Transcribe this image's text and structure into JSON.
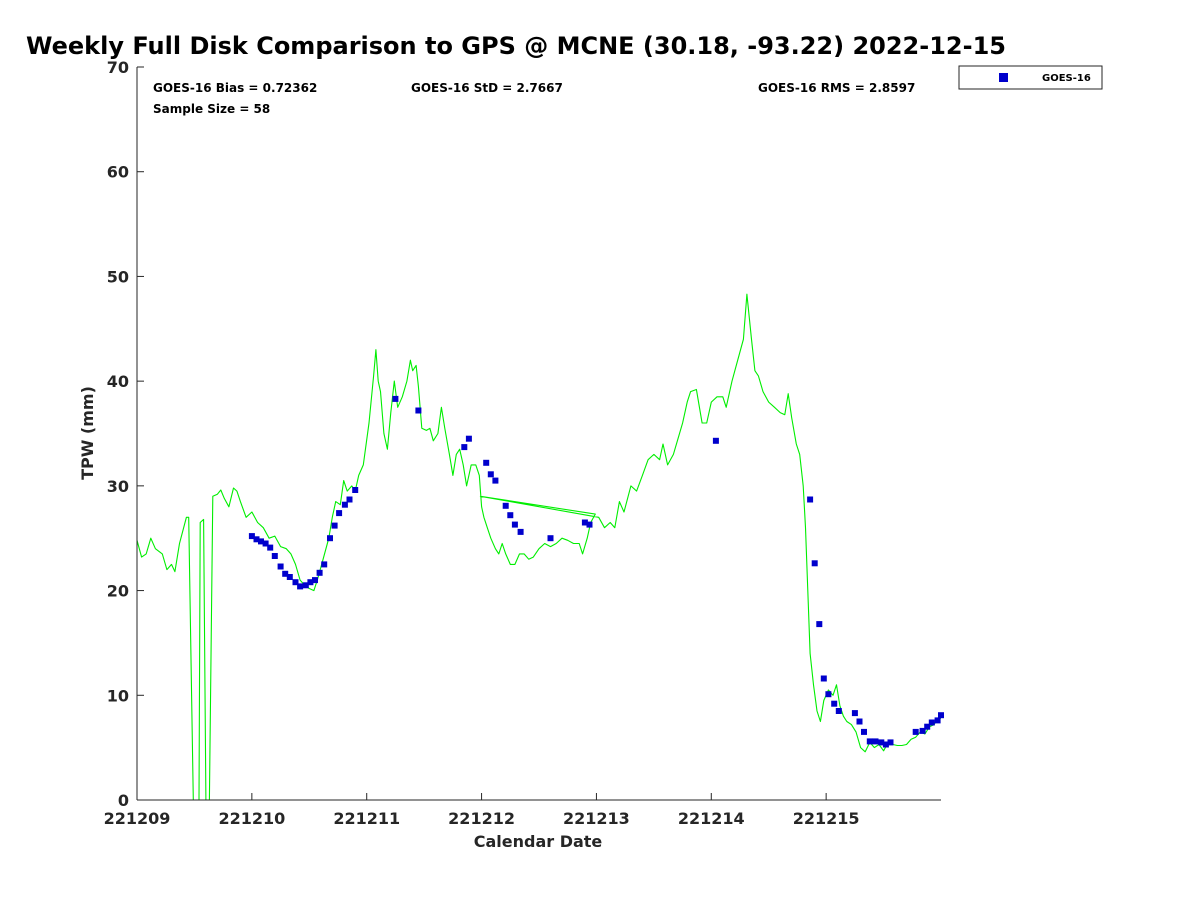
{
  "chart_data": {
    "type": "scatter",
    "title": "Weekly Full Disk Comparison to GPS @ MCNE (30.18, -93.22) 2022-12-15",
    "xlabel": "Calendar Date",
    "ylabel": "TPW (mm)",
    "xlim": [
      0,
      7
    ],
    "ylim": [
      0,
      70
    ],
    "x_ticks": [
      {
        "value": 0,
        "label": "221209"
      },
      {
        "value": 1,
        "label": "221210"
      },
      {
        "value": 2,
        "label": "221211"
      },
      {
        "value": 3,
        "label": "221212"
      },
      {
        "value": 4,
        "label": "221213"
      },
      {
        "value": 5,
        "label": "221214"
      },
      {
        "value": 6,
        "label": "221215"
      }
    ],
    "y_ticks": [
      0,
      10,
      20,
      30,
      40,
      50,
      60,
      70
    ],
    "stats": {
      "bias": "GOES-16 Bias = 0.72362",
      "std": "GOES-16 StD = 2.7667",
      "rms": "GOES-16 RMS = 2.8597",
      "sample": "Sample Size = 58"
    },
    "legend": {
      "position": "top-right",
      "entries": [
        {
          "name": "GOES-16",
          "color": "#0000cc"
        }
      ]
    },
    "grid": false,
    "gps_line_color": "#00ee00",
    "series": [
      {
        "name": "GPS",
        "type": "line",
        "color": "#00ee00",
        "points": [
          [
            0.0,
            24.8
          ],
          [
            0.04,
            23.2
          ],
          [
            0.08,
            23.5
          ],
          [
            0.12,
            25.0
          ],
          [
            0.16,
            24.0
          ],
          [
            0.22,
            23.5
          ],
          [
            0.26,
            22.0
          ],
          [
            0.3,
            22.5
          ],
          [
            0.33,
            21.8
          ],
          [
            0.37,
            24.5
          ],
          [
            0.43,
            27.0
          ],
          [
            0.45,
            27.0
          ],
          [
            0.49,
            0
          ],
          [
            0.54,
            0
          ],
          [
            0.55,
            26.5
          ],
          [
            0.58,
            26.8
          ],
          [
            0.6,
            0
          ],
          [
            0.63,
            0
          ],
          [
            0.66,
            29.0
          ],
          [
            0.7,
            29.2
          ],
          [
            0.73,
            29.6
          ],
          [
            0.76,
            28.8
          ],
          [
            0.8,
            28.0
          ],
          [
            0.84,
            29.8
          ],
          [
            0.87,
            29.5
          ],
          [
            0.9,
            28.5
          ],
          [
            0.95,
            27.0
          ],
          [
            1.0,
            27.5
          ],
          [
            1.05,
            26.5
          ],
          [
            1.1,
            26.0
          ],
          [
            1.15,
            25.0
          ],
          [
            1.2,
            25.2
          ],
          [
            1.25,
            24.2
          ],
          [
            1.3,
            24.0
          ],
          [
            1.34,
            23.5
          ],
          [
            1.38,
            22.5
          ],
          [
            1.42,
            21.0
          ],
          [
            1.46,
            20.5
          ],
          [
            1.5,
            20.2
          ],
          [
            1.54,
            20.0
          ],
          [
            1.57,
            21.0
          ],
          [
            1.62,
            23.0
          ],
          [
            1.67,
            25.0
          ],
          [
            1.7,
            27.0
          ],
          [
            1.73,
            28.5
          ],
          [
            1.77,
            28.2
          ],
          [
            1.8,
            30.5
          ],
          [
            1.83,
            29.5
          ],
          [
            1.87,
            30.0
          ],
          [
            1.9,
            29.5
          ],
          [
            1.93,
            31.0
          ],
          [
            1.97,
            32.0
          ],
          [
            2.02,
            36.0
          ],
          [
            2.06,
            40.5
          ],
          [
            2.08,
            43.0
          ],
          [
            2.1,
            40.0
          ],
          [
            2.12,
            39.0
          ],
          [
            2.15,
            35.0
          ],
          [
            2.18,
            33.5
          ],
          [
            2.21,
            37.0
          ],
          [
            2.24,
            40.0
          ],
          [
            2.27,
            37.5
          ],
          [
            2.31,
            38.5
          ],
          [
            2.35,
            40.0
          ],
          [
            2.38,
            42.0
          ],
          [
            2.4,
            41.0
          ],
          [
            2.43,
            41.5
          ],
          [
            2.45,
            39.5
          ],
          [
            2.48,
            35.5
          ],
          [
            2.52,
            35.3
          ],
          [
            2.55,
            35.5
          ],
          [
            2.58,
            34.3
          ],
          [
            2.62,
            35.0
          ],
          [
            2.65,
            37.5
          ],
          [
            2.68,
            35.5
          ],
          [
            2.72,
            33.0
          ],
          [
            2.75,
            31.0
          ],
          [
            2.78,
            33.0
          ],
          [
            2.81,
            33.5
          ],
          [
            2.84,
            32.0
          ],
          [
            2.87,
            30.0
          ],
          [
            2.91,
            32.0
          ],
          [
            2.95,
            32.0
          ],
          [
            2.98,
            31.0
          ],
          [
            3.0,
            28.0
          ],
          [
            3.02,
            27.0
          ],
          [
            3.05,
            26.0
          ],
          [
            3.08,
            25.0
          ],
          [
            3.12,
            24.0
          ],
          [
            3.15,
            23.5
          ],
          [
            3.18,
            24.5
          ],
          [
            3.21,
            23.5
          ],
          [
            3.25,
            22.5
          ],
          [
            3.29,
            22.5
          ],
          [
            3.33,
            23.5
          ],
          [
            3.37,
            23.5
          ],
          [
            3.41,
            23.0
          ],
          [
            3.45,
            23.2
          ],
          [
            3.5,
            24.0
          ],
          [
            3.55,
            24.5
          ],
          [
            3.6,
            24.2
          ],
          [
            3.65,
            24.5
          ],
          [
            3.7,
            25.0
          ],
          [
            3.75,
            24.8
          ],
          [
            3.8,
            24.5
          ],
          [
            3.85,
            24.5
          ],
          [
            3.88,
            23.5
          ],
          [
            3.92,
            25.0
          ],
          [
            3.95,
            26.5
          ],
          [
            3.99,
            27.3
          ],
          [
            2.99,
            29.0
          ],
          [
            4.02,
            27.0
          ],
          [
            4.07,
            26.0
          ],
          [
            4.12,
            26.5
          ],
          [
            4.16,
            26.0
          ],
          [
            4.2,
            28.5
          ],
          [
            4.24,
            27.5
          ],
          [
            4.3,
            30.0
          ],
          [
            4.35,
            29.5
          ],
          [
            4.4,
            31.0
          ],
          [
            4.45,
            32.5
          ],
          [
            4.5,
            33.0
          ],
          [
            4.55,
            32.5
          ],
          [
            4.58,
            34.0
          ],
          [
            4.62,
            32.0
          ],
          [
            4.67,
            33.0
          ],
          [
            4.71,
            34.5
          ],
          [
            4.75,
            36.0
          ],
          [
            4.79,
            38.0
          ],
          [
            4.82,
            39.0
          ],
          [
            4.87,
            39.2
          ],
          [
            4.92,
            36.0
          ],
          [
            4.96,
            36.0
          ],
          [
            5.0,
            38.0
          ],
          [
            5.05,
            38.5
          ],
          [
            5.1,
            38.5
          ],
          [
            5.13,
            37.5
          ],
          [
            5.18,
            40.0
          ],
          [
            5.23,
            42.0
          ],
          [
            5.28,
            44.0
          ],
          [
            5.31,
            48.3
          ],
          [
            5.35,
            44.0
          ],
          [
            5.38,
            41.0
          ],
          [
            5.41,
            40.5
          ],
          [
            5.45,
            39.0
          ],
          [
            5.5,
            38.0
          ],
          [
            5.55,
            37.5
          ],
          [
            5.6,
            37.0
          ],
          [
            5.64,
            36.8
          ],
          [
            5.67,
            38.8
          ],
          [
            5.7,
            36.5
          ],
          [
            5.74,
            34.0
          ],
          [
            5.77,
            33.0
          ],
          [
            5.8,
            30.0
          ],
          [
            5.82,
            26.0
          ],
          [
            5.84,
            20.0
          ],
          [
            5.86,
            14.0
          ],
          [
            5.89,
            11.0
          ],
          [
            5.92,
            8.5
          ],
          [
            5.95,
            7.5
          ],
          [
            5.98,
            9.5
          ],
          [
            6.02,
            10.5
          ],
          [
            6.06,
            10.0
          ],
          [
            6.09,
            11.0
          ],
          [
            6.12,
            9.0
          ],
          [
            6.15,
            8.0
          ],
          [
            6.18,
            7.5
          ],
          [
            6.22,
            7.2
          ],
          [
            6.26,
            6.5
          ],
          [
            6.3,
            5.0
          ],
          [
            6.34,
            4.6
          ],
          [
            6.38,
            5.5
          ],
          [
            6.42,
            5.0
          ],
          [
            6.46,
            5.3
          ],
          [
            6.5,
            4.7
          ],
          [
            6.54,
            5.5
          ],
          [
            6.58,
            5.3
          ],
          [
            6.62,
            5.2
          ],
          [
            6.66,
            5.2
          ],
          [
            6.7,
            5.3
          ],
          [
            6.74,
            5.8
          ],
          [
            6.78,
            6.0
          ],
          [
            6.82,
            6.5
          ],
          [
            6.86,
            6.3
          ],
          [
            6.9,
            7.0
          ],
          [
            6.94,
            7.2
          ],
          [
            6.97,
            7.8
          ],
          [
            7.0,
            7.8
          ]
        ]
      },
      {
        "name": "GOES-16",
        "type": "scatter",
        "color": "#0000cc",
        "points": [
          [
            1.0,
            25.2
          ],
          [
            1.04,
            24.9
          ],
          [
            1.08,
            24.7
          ],
          [
            1.12,
            24.5
          ],
          [
            1.16,
            24.1
          ],
          [
            1.2,
            23.3
          ],
          [
            1.25,
            22.3
          ],
          [
            1.29,
            21.6
          ],
          [
            1.33,
            21.3
          ],
          [
            1.38,
            20.8
          ],
          [
            1.42,
            20.4
          ],
          [
            1.47,
            20.5
          ],
          [
            1.51,
            20.8
          ],
          [
            1.55,
            21.0
          ],
          [
            1.59,
            21.7
          ],
          [
            1.63,
            22.5
          ],
          [
            1.68,
            25.0
          ],
          [
            1.72,
            26.2
          ],
          [
            1.76,
            27.4
          ],
          [
            1.81,
            28.2
          ],
          [
            1.85,
            28.7
          ],
          [
            1.9,
            29.6
          ],
          [
            2.25,
            38.3
          ],
          [
            2.45,
            37.2
          ],
          [
            2.85,
            33.7
          ],
          [
            2.89,
            34.5
          ],
          [
            3.04,
            32.2
          ],
          [
            3.08,
            31.1
          ],
          [
            3.12,
            30.5
          ],
          [
            3.21,
            28.1
          ],
          [
            3.25,
            27.2
          ],
          [
            3.29,
            26.3
          ],
          [
            3.34,
            25.6
          ],
          [
            3.6,
            25.0
          ],
          [
            3.9,
            26.5
          ],
          [
            3.94,
            26.3
          ],
          [
            5.04,
            34.3
          ],
          [
            5.86,
            28.7
          ],
          [
            5.9,
            22.6
          ],
          [
            5.94,
            16.8
          ],
          [
            5.98,
            11.6
          ],
          [
            6.02,
            10.1
          ],
          [
            6.07,
            9.2
          ],
          [
            6.11,
            8.5
          ],
          [
            6.25,
            8.3
          ],
          [
            6.29,
            7.5
          ],
          [
            6.33,
            6.5
          ],
          [
            6.38,
            5.6
          ],
          [
            6.43,
            5.6
          ],
          [
            6.48,
            5.5
          ],
          [
            6.52,
            5.3
          ],
          [
            6.56,
            5.5
          ],
          [
            6.78,
            6.5
          ],
          [
            6.84,
            6.6
          ],
          [
            6.88,
            7.0
          ],
          [
            6.92,
            7.4
          ],
          [
            6.97,
            7.6
          ],
          [
            7.0,
            8.1
          ]
        ]
      }
    ]
  }
}
